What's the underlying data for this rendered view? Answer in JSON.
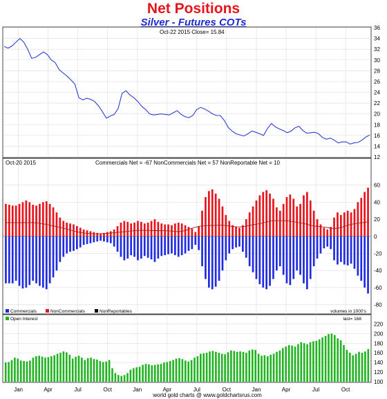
{
  "header": {
    "title": "Net Positions",
    "subtitle": "Silver - Futures COTs"
  },
  "colors": {
    "price_line": "#2b3fd8",
    "commercials": "#1f2be0",
    "noncommercials": "#e8141b",
    "nonreportables": "#000000",
    "open_interest": "#1fb41f",
    "net_line": "#9a2020",
    "grid": "#dcdcdc"
  },
  "chart_data": [
    {
      "type": "line",
      "panel": "price",
      "info": "Oct-22  2015     Close= 15.84",
      "yticks": [
        12,
        14,
        16,
        18,
        20,
        22,
        24,
        26,
        28,
        30,
        32,
        34,
        36
      ],
      "ylim": [
        12,
        36
      ],
      "series": [
        {
          "values": [
            32.5,
            32.2,
            32.6,
            33.3,
            34.0,
            33.3,
            32.0,
            30.3,
            30.5,
            31.0,
            31.5,
            31.0,
            30.0,
            29.5,
            28.2,
            27.6,
            27.0,
            26.3,
            25.5,
            23.0,
            22.6,
            22.9,
            22.7,
            22.3,
            21.5,
            20.4,
            19.2,
            19.6,
            19.9,
            21.0,
            23.8,
            24.3,
            23.5,
            23.0,
            22.3,
            21.4,
            20.8,
            20.0,
            19.8,
            19.9,
            20.0,
            19.9,
            19.8,
            20.2,
            20.6,
            19.9,
            19.5,
            19.3,
            19.7,
            20.8,
            21.2,
            20.9,
            20.5,
            20.0,
            19.7,
            19.7,
            18.8,
            17.5,
            16.8,
            16.3,
            16.1,
            15.9,
            16.3,
            16.8,
            16.6,
            16.3,
            16.0,
            17.3,
            18.2,
            17.6,
            17.2,
            16.9,
            16.5,
            16.8,
            17.4,
            17.7,
            16.9,
            16.4,
            16.5,
            16.6,
            16.3,
            15.6,
            15.3,
            15.5,
            15.1,
            14.6,
            14.8,
            14.8,
            14.4,
            14.6,
            14.7,
            15.1,
            15.7,
            16.1
          ]
        }
      ]
    },
    {
      "type": "bar",
      "panel": "net_positions",
      "info": "Oct-20  2015",
      "stats": "Commercials Net = -67       NonCommercials Net = 57       NonReportable Net = 10",
      "yticks": [
        -80,
        -60,
        -40,
        -20,
        0,
        20,
        40,
        60
      ],
      "ylim": [
        -82,
        80
      ],
      "unit_note": "volumes in 1000's",
      "series": [
        {
          "name": "Commercials",
          "values": [
            -55,
            -55,
            -55,
            -52,
            -58,
            -61,
            -60,
            -57,
            -52,
            -55,
            -58,
            -60,
            -62,
            -55,
            -48,
            -40,
            -30,
            -24,
            -20,
            -18,
            -17,
            -15,
            -13,
            -10,
            -9,
            -8,
            -7,
            -6,
            -5,
            -6,
            -7,
            -8,
            -12,
            -18,
            -24,
            -28,
            -26,
            -22,
            -24,
            -28,
            -26,
            -23,
            -25,
            -27,
            -30,
            -26,
            -23,
            -22,
            -21,
            -20,
            -22,
            -24,
            -22,
            -20,
            -17,
            -15,
            -10,
            -16,
            -35,
            -50,
            -60,
            -62,
            -59,
            -52,
            -40,
            -28,
            -20,
            -15,
            -13,
            -12,
            -18,
            -25,
            -35,
            -42,
            -50,
            -56,
            -60,
            -62,
            -58,
            -50,
            -40,
            -35,
            -45,
            -55,
            -57,
            -50,
            -40,
            -45,
            -55,
            -62,
            -50,
            -35,
            -26,
            -20,
            -14,
            -12,
            -15,
            -28,
            -33,
            -30,
            -33,
            -34,
            -32,
            -38,
            -46,
            -52,
            -60,
            -67
          ]
        },
        {
          "name": "NonCommercials",
          "values": [
            38,
            37,
            36,
            36,
            38,
            40,
            42,
            40,
            37,
            36,
            38,
            40,
            41,
            38,
            34,
            28,
            22,
            18,
            16,
            15,
            14,
            12,
            10,
            8,
            7,
            6,
            5,
            4,
            3,
            4,
            5,
            6,
            8,
            12,
            16,
            18,
            17,
            15,
            16,
            18,
            17,
            15,
            16,
            18,
            20,
            17,
            15,
            14,
            14,
            13,
            15,
            16,
            15,
            13,
            11,
            9,
            5,
            12,
            30,
            46,
            53,
            55,
            50,
            44,
            35,
            25,
            18,
            13,
            11,
            10,
            13,
            20,
            28,
            35,
            42,
            48,
            52,
            54,
            50,
            44,
            34,
            30,
            38,
            46,
            49,
            44,
            35,
            38,
            48,
            52,
            42,
            30,
            20,
            14,
            10,
            8,
            11,
            22,
            28,
            25,
            28,
            30,
            28,
            32,
            40,
            45,
            52,
            57
          ]
        },
        {
          "name": "NonReportables",
          "values": []
        }
      ]
    },
    {
      "type": "bar",
      "panel": "open_interest",
      "name": "Open Interest",
      "last_note": "last= 168",
      "yticks": [
        100,
        120,
        140,
        160,
        180,
        200,
        220
      ],
      "ylim": [
        100,
        225
      ],
      "series": [
        {
          "name": "Open Interest",
          "values": [
            140,
            141,
            145,
            150,
            148,
            144,
            143,
            142,
            144,
            150,
            153,
            154,
            152,
            150,
            151,
            153,
            155,
            158,
            160,
            163,
            161,
            156,
            148,
            152,
            154,
            150,
            145,
            149,
            150,
            147,
            146,
            143,
            141,
            142,
            145,
            128,
            118,
            114,
            112,
            114,
            118,
            125,
            128,
            130,
            131,
            135,
            137,
            136,
            134,
            135,
            136,
            137,
            140,
            141,
            143,
            145,
            148,
            149,
            147,
            144,
            142,
            145,
            150,
            153,
            158,
            159,
            160,
            163,
            164,
            162,
            160,
            158,
            157,
            161,
            165,
            164,
            162,
            163,
            162,
            160,
            165,
            167,
            166,
            158,
            154,
            155,
            153,
            156,
            158,
            162,
            165,
            170,
            173,
            176,
            175,
            173,
            178,
            182,
            180,
            178,
            182,
            184,
            185,
            188,
            192,
            195,
            199,
            200,
            197,
            190,
            186,
            176,
            166,
            160,
            155,
            158,
            162,
            160,
            163,
            168
          ]
        }
      ]
    }
  ],
  "x_axis": {
    "labels": [
      "Jan",
      "Apr",
      "Jul",
      "Oct",
      "Jan",
      "Apr",
      "Jul",
      "Oct",
      "Jan",
      "Apr",
      "Jul",
      "Oct"
    ]
  },
  "legend": {
    "commercials": "Commercials",
    "noncommercials": "NonCommercials",
    "nonreportables": "NonReportables",
    "open_interest": "Open Interest"
  },
  "footer": {
    "credit": "world gold charts @ www.goldchartsrus.com"
  }
}
